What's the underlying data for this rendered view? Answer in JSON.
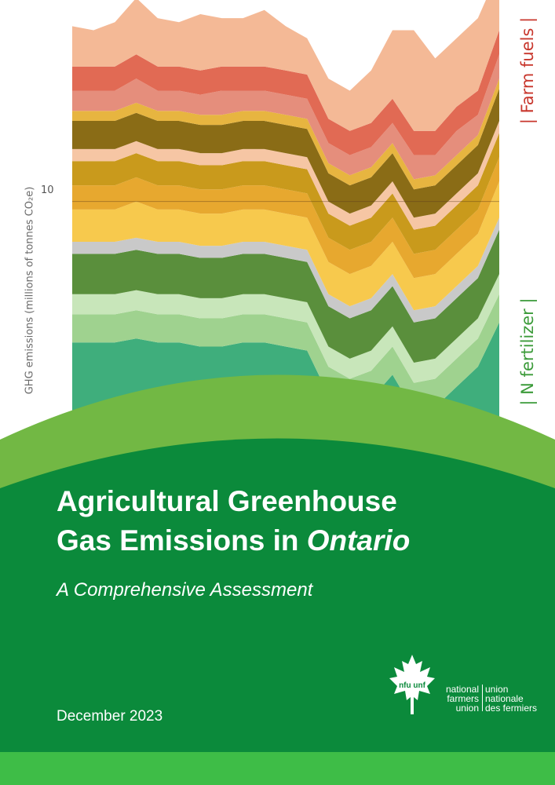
{
  "report": {
    "title_line1": "Agricultural Greenhouse",
    "title_line2_prefix": "Gas Emissions in ",
    "title_line2_italic": "Ontario",
    "subtitle": "A Comprehensive Assessment",
    "date": "December 2023"
  },
  "organization": {
    "logo_mark": "nfu unf",
    "name_en": [
      "national",
      "farmers",
      "union"
    ],
    "name_fr": [
      "union",
      "nationale",
      "des fermiers"
    ]
  },
  "colors": {
    "dark_green": "#0b8a3b",
    "light_green": "#72b844",
    "bar_green": "#3ebd47",
    "farm_fuels": "#c8372d",
    "n_fertilizer": "#3c9b3a"
  },
  "chart_data": {
    "type": "area",
    "stacked": true,
    "ylabel": "GHG emissions (millions of tonnes CO₂e)",
    "y_ticks": [
      "10"
    ],
    "y_tick_values": [
      10
    ],
    "ylim": [
      0,
      15
    ],
    "legend_labels_visible": [
      "Farm fuels",
      "N fertilizer"
    ],
    "legend_placement": "right",
    "x_count": 21,
    "layers": [
      {
        "name": "",
        "color": "#3fae7c",
        "values": [
          6.5,
          6.5,
          6.5,
          6.6,
          6.5,
          6.5,
          6.4,
          6.4,
          6.5,
          6.5,
          6.4,
          6.3,
          5.2,
          4.9,
          5.1,
          5.7,
          4.8,
          4.9,
          5.4,
          5.9,
          7.0
        ]
      },
      {
        "name": "",
        "color": "#9fd28f",
        "values": [
          0.7,
          0.7,
          0.7,
          0.7,
          0.7,
          0.7,
          0.7,
          0.7,
          0.7,
          0.7,
          0.7,
          0.7,
          0.7,
          0.7,
          0.7,
          0.7,
          0.7,
          0.7,
          0.7,
          0.7,
          0.7
        ]
      },
      {
        "name": "",
        "color": "#c8e6ba",
        "values": [
          0.5,
          0.5,
          0.5,
          0.5,
          0.5,
          0.5,
          0.5,
          0.5,
          0.5,
          0.5,
          0.5,
          0.5,
          0.5,
          0.5,
          0.5,
          0.5,
          0.5,
          0.5,
          0.5,
          0.5,
          0.5
        ]
      },
      {
        "name": "",
        "color": "#5a8f3c",
        "values": [
          1.0,
          1.0,
          1.0,
          1.0,
          1.0,
          1.0,
          1.0,
          1.0,
          1.0,
          1.0,
          1.0,
          1.0,
          1.0,
          1.0,
          1.0,
          1.0,
          1.0,
          1.0,
          1.0,
          1.0,
          1.1
        ]
      },
      {
        "name": "",
        "color": "#c9c9c9",
        "values": [
          0.3,
          0.3,
          0.3,
          0.3,
          0.3,
          0.3,
          0.3,
          0.3,
          0.3,
          0.3,
          0.3,
          0.3,
          0.3,
          0.3,
          0.3,
          0.3,
          0.3,
          0.3,
          0.3,
          0.3,
          0.3
        ]
      },
      {
        "name": "",
        "color": "#f7c94d",
        "values": [
          0.8,
          0.8,
          0.8,
          0.9,
          0.8,
          0.8,
          0.8,
          0.8,
          0.8,
          0.8,
          0.8,
          0.8,
          0.8,
          0.8,
          0.8,
          0.8,
          0.8,
          0.8,
          0.8,
          0.8,
          0.9
        ]
      },
      {
        "name": "",
        "color": "#e7a82f",
        "values": [
          0.6,
          0.6,
          0.6,
          0.6,
          0.6,
          0.6,
          0.6,
          0.6,
          0.6,
          0.6,
          0.6,
          0.6,
          0.6,
          0.6,
          0.6,
          0.6,
          0.6,
          0.6,
          0.6,
          0.6,
          0.6
        ]
      },
      {
        "name": "",
        "color": "#c99a1c",
        "values": [
          0.6,
          0.6,
          0.6,
          0.6,
          0.6,
          0.6,
          0.6,
          0.6,
          0.6,
          0.6,
          0.6,
          0.6,
          0.6,
          0.6,
          0.6,
          0.6,
          0.6,
          0.6,
          0.6,
          0.6,
          0.6
        ]
      },
      {
        "name": "",
        "color": "#f6c6a4",
        "values": [
          0.3,
          0.3,
          0.3,
          0.3,
          0.3,
          0.3,
          0.3,
          0.3,
          0.3,
          0.3,
          0.3,
          0.3,
          0.3,
          0.3,
          0.3,
          0.3,
          0.3,
          0.3,
          0.3,
          0.3,
          0.3
        ]
      },
      {
        "name": "",
        "color": "#8a6c16",
        "values": [
          0.7,
          0.7,
          0.7,
          0.7,
          0.7,
          0.7,
          0.7,
          0.7,
          0.7,
          0.7,
          0.7,
          0.7,
          0.7,
          0.7,
          0.7,
          0.7,
          0.7,
          0.7,
          0.7,
          0.7,
          0.8
        ]
      },
      {
        "name": "",
        "color": "#e7b540",
        "values": [
          0.25,
          0.25,
          0.25,
          0.25,
          0.25,
          0.25,
          0.25,
          0.25,
          0.25,
          0.25,
          0.25,
          0.25,
          0.25,
          0.25,
          0.25,
          0.25,
          0.25,
          0.25,
          0.25,
          0.25,
          0.25
        ]
      },
      {
        "name": "",
        "color": "#e58e7c",
        "values": [
          0.5,
          0.5,
          0.5,
          0.6,
          0.5,
          0.5,
          0.5,
          0.6,
          0.5,
          0.5,
          0.5,
          0.5,
          0.5,
          0.5,
          0.5,
          0.5,
          0.6,
          0.5,
          0.6,
          0.5,
          0.6
        ]
      },
      {
        "name": "Farm fuels",
        "color": "#e16a54",
        "values": [
          0.6,
          0.6,
          0.6,
          0.6,
          0.6,
          0.6,
          0.6,
          0.6,
          0.6,
          0.6,
          0.6,
          0.6,
          0.6,
          0.6,
          0.6,
          0.6,
          0.6,
          0.6,
          0.6,
          0.6,
          0.6
        ]
      },
      {
        "name": "",
        "color": "#f4b996",
        "values": [
          1.0,
          0.9,
          1.1,
          1.4,
          1.2,
          1.1,
          1.4,
          1.2,
          1.2,
          1.4,
          1.1,
          0.9,
          1.0,
          1.0,
          1.3,
          1.7,
          2.5,
          1.8,
          1.7,
          1.8,
          1.5
        ]
      }
    ]
  }
}
